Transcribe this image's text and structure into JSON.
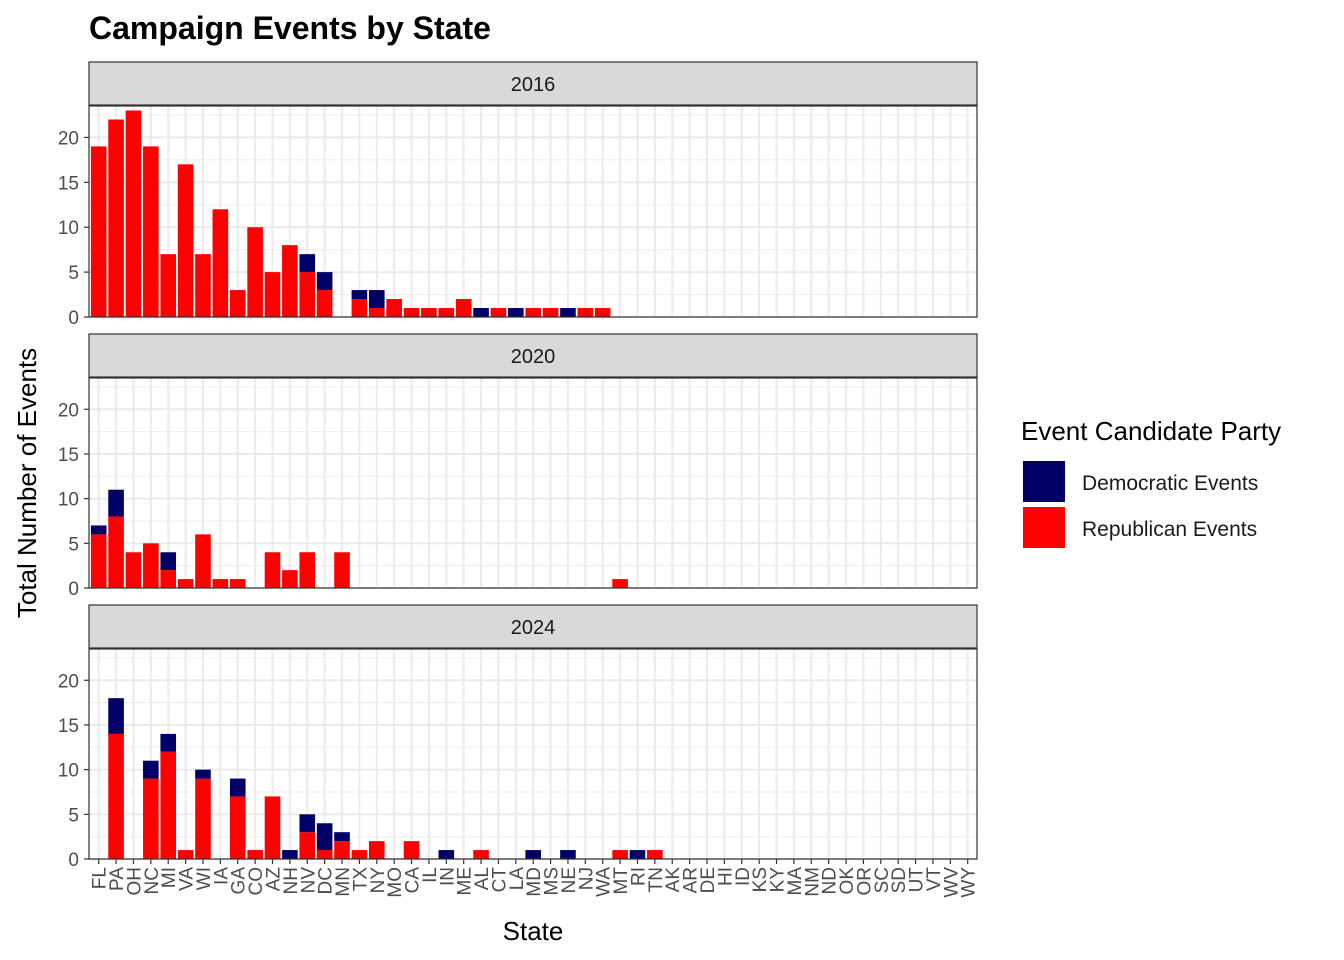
{
  "chart_data": {
    "type": "bar",
    "stacked": true,
    "title": "Campaign Events by State",
    "xlabel": "State",
    "ylabel": "Total Number of Events",
    "ylim": [
      0,
      23.5
    ],
    "yticks": [
      0,
      5,
      10,
      15,
      20
    ],
    "grid": true,
    "legend": {
      "title": "Event Candidate Party",
      "position": "right",
      "entries": [
        {
          "name": "Democratic Events",
          "color": "#000066"
        },
        {
          "name": "Republican Events",
          "color": "#FF0000"
        }
      ]
    },
    "categories": [
      "FL",
      "PA",
      "OH",
      "NC",
      "MI",
      "VA",
      "WI",
      "IA",
      "GA",
      "CO",
      "AZ",
      "NH",
      "NV",
      "DC",
      "MN",
      "TX",
      "NY",
      "MO",
      "CA",
      "IL",
      "IN",
      "ME",
      "AL",
      "CT",
      "LA",
      "MD",
      "MS",
      "NE",
      "NJ",
      "WA",
      "MT",
      "RI",
      "TN",
      "AK",
      "AR",
      "DE",
      "HI",
      "ID",
      "KS",
      "KY",
      "MA",
      "NM",
      "ND",
      "OK",
      "OR",
      "SC",
      "SD",
      "UT",
      "VT",
      "WV",
      "WY"
    ],
    "panels": [
      {
        "label": "2016",
        "series": [
          {
            "name": "Republican Events",
            "values": [
              19,
              22,
              23,
              19,
              7,
              17,
              7,
              12,
              3,
              10,
              5,
              8,
              5,
              3,
              0,
              2,
              1,
              2,
              1,
              1,
              1,
              2,
              0,
              1,
              0,
              1,
              1,
              0,
              1,
              1,
              0,
              0,
              0,
              0,
              0,
              0,
              0,
              0,
              0,
              0,
              0,
              0,
              0,
              0,
              0,
              0,
              0,
              0,
              0,
              0,
              0
            ]
          },
          {
            "name": "Democratic Events",
            "values": [
              0,
              0,
              0,
              0,
              0,
              0,
              0,
              0,
              0,
              0,
              0,
              0,
              2,
              2,
              0,
              1,
              2,
              0,
              0,
              0,
              0,
              0,
              1,
              0,
              1,
              0,
              0,
              1,
              0,
              0,
              0,
              0,
              0,
              0,
              0,
              0,
              0,
              0,
              0,
              0,
              0,
              0,
              0,
              0,
              0,
              0,
              0,
              0,
              0,
              0,
              0
            ]
          }
        ]
      },
      {
        "label": "2020",
        "series": [
          {
            "name": "Republican Events",
            "values": [
              6,
              8,
              4,
              5,
              2,
              1,
              6,
              1,
              1,
              0,
              4,
              2,
              4,
              0,
              4,
              0,
              0,
              0,
              0,
              0,
              0,
              0,
              0,
              0,
              0,
              0,
              0,
              0,
              0,
              0,
              1,
              0,
              0,
              0,
              0,
              0,
              0,
              0,
              0,
              0,
              0,
              0,
              0,
              0,
              0,
              0,
              0,
              0,
              0,
              0,
              0
            ]
          },
          {
            "name": "Democratic Events",
            "values": [
              1,
              3,
              0,
              0,
              2,
              0,
              0,
              0,
              0,
              0,
              0,
              0,
              0,
              0,
              0,
              0,
              0,
              0,
              0,
              0,
              0,
              0,
              0,
              0,
              0,
              0,
              0,
              0,
              0,
              0,
              0,
              0,
              0,
              0,
              0,
              0,
              0,
              0,
              0,
              0,
              0,
              0,
              0,
              0,
              0,
              0,
              0,
              0,
              0,
              0,
              0
            ]
          }
        ]
      },
      {
        "label": "2024",
        "series": [
          {
            "name": "Republican Events",
            "values": [
              0,
              14,
              0,
              9,
              12,
              1,
              9,
              0,
              7,
              1,
              7,
              0,
              3,
              1,
              2,
              1,
              2,
              0,
              2,
              0,
              0,
              0,
              1,
              0,
              0,
              0,
              0,
              0,
              0,
              0,
              1,
              0,
              1,
              0,
              0,
              0,
              0,
              0,
              0,
              0,
              0,
              0,
              0,
              0,
              0,
              0,
              0,
              0,
              0,
              0,
              0
            ]
          },
          {
            "name": "Democratic Events",
            "values": [
              0,
              4,
              0,
              2,
              2,
              0,
              1,
              0,
              2,
              0,
              0,
              1,
              2,
              3,
              1,
              0,
              0,
              0,
              0,
              0,
              1,
              0,
              0,
              0,
              0,
              1,
              0,
              1,
              0,
              0,
              0,
              1,
              0,
              0,
              0,
              0,
              0,
              0,
              0,
              0,
              0,
              0,
              0,
              0,
              0,
              0,
              0,
              0,
              0,
              0,
              0
            ]
          }
        ]
      }
    ]
  }
}
